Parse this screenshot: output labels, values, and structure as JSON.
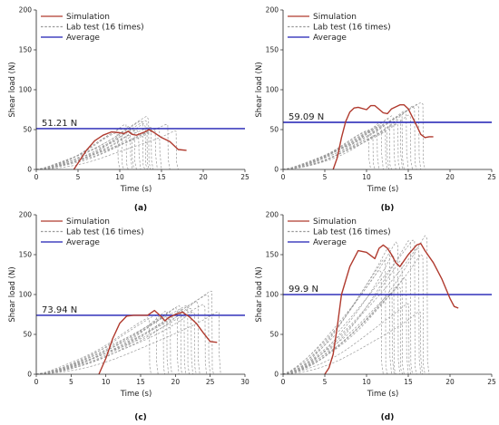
{
  "colors": {
    "simulation": "#b03a2e",
    "lab": "#9a9a9a",
    "average": "#1f1fb4",
    "axis": "#222222"
  },
  "chart_data": [
    {
      "type": "line",
      "panel_label": "(a)",
      "xlabel": "Time (s)",
      "ylabel": "Shear load (N)",
      "xlim": [
        0,
        25
      ],
      "ylim": [
        0,
        200
      ],
      "xticks": [
        0,
        5,
        10,
        15,
        20,
        25
      ],
      "yticks": [
        0,
        50,
        100,
        150,
        200
      ],
      "legend": {
        "placement": "top-left",
        "entries": [
          "Simulation",
          "Lab test (16 times)",
          "Average"
        ]
      },
      "average": {
        "value": 51.21,
        "label": "51.21 N"
      },
      "simulation": {
        "name": "Simulation",
        "x": [
          4.5,
          5,
          6,
          7,
          8,
          9,
          10,
          10.5,
          11,
          11.5,
          12,
          13,
          13.5,
          14,
          15,
          16,
          17,
          18
        ],
        "y": [
          0,
          8,
          24,
          36,
          43,
          47,
          46,
          45,
          48,
          44,
          43,
          47,
          50,
          47,
          40,
          35,
          25,
          24
        ]
      },
      "lab_tests": {
        "name": "Lab test (16 times)",
        "peaks": [
          [
            9.5,
            45
          ],
          [
            10,
            52
          ],
          [
            10.5,
            58
          ],
          [
            11,
            55
          ],
          [
            11.5,
            50
          ],
          [
            12,
            48
          ],
          [
            12.5,
            60
          ],
          [
            13,
            62
          ],
          [
            13.5,
            55
          ],
          [
            14,
            50
          ],
          [
            11.2,
            40
          ],
          [
            12.8,
            56
          ],
          [
            13.2,
            65
          ],
          [
            14.5,
            52
          ],
          [
            15.5,
            58
          ],
          [
            16.5,
            50
          ]
        ],
        "drops": [
          12,
          5,
          8,
          15,
          10,
          20,
          6,
          9,
          11,
          18,
          14,
          7,
          10,
          22,
          13,
          9
        ]
      }
    },
    {
      "type": "line",
      "panel_label": "(b)",
      "xlabel": "Time (s)",
      "ylabel": "Shear load (N)",
      "xlim": [
        0,
        25
      ],
      "ylim": [
        0,
        200
      ],
      "xticks": [
        0,
        5,
        10,
        15,
        20,
        25
      ],
      "yticks": [
        0,
        50,
        100,
        150,
        200
      ],
      "legend": {
        "placement": "top-left",
        "entries": [
          "Simulation",
          "Lab test (16 times)",
          "Average"
        ]
      },
      "average": {
        "value": 59.09,
        "label": "59.09 N"
      },
      "simulation": {
        "name": "Simulation",
        "x": [
          6,
          6.5,
          7,
          7.5,
          8,
          8.5,
          9,
          10,
          10.5,
          11,
          12,
          12.5,
          13,
          14,
          14.5,
          15,
          16,
          16.5,
          17,
          17.5,
          18
        ],
        "y": [
          0,
          15,
          40,
          60,
          72,
          77,
          78,
          75,
          80,
          80,
          71,
          70,
          76,
          81,
          81,
          76,
          55,
          44,
          40,
          41,
          41
        ]
      },
      "lab_tests": {
        "name": "Lab test (16 times)",
        "peaks": [
          [
            10,
            48
          ],
          [
            10.5,
            52
          ],
          [
            11,
            56
          ],
          [
            11.5,
            60
          ],
          [
            12,
            55
          ],
          [
            12.5,
            62
          ],
          [
            13,
            66
          ],
          [
            13.5,
            58
          ],
          [
            14,
            70
          ],
          [
            14.5,
            75
          ],
          [
            15,
            68
          ],
          [
            15.5,
            78
          ],
          [
            16,
            80
          ],
          [
            16.5,
            84
          ],
          [
            12.2,
            50
          ],
          [
            13.8,
            64
          ]
        ],
        "drops": [
          12,
          8,
          15,
          20,
          10,
          6,
          18,
          9,
          14,
          22,
          11,
          7,
          16,
          10,
          13,
          19
        ]
      }
    },
    {
      "type": "line",
      "panel_label": "(c)",
      "xlabel": "Time (s)",
      "ylabel": "Shear load (N)",
      "xlim": [
        0,
        30
      ],
      "ylim": [
        0,
        200
      ],
      "xticks": [
        0,
        5,
        10,
        15,
        20,
        25,
        30
      ],
      "yticks": [
        0,
        50,
        100,
        150,
        200
      ],
      "legend": {
        "placement": "top-left",
        "entries": [
          "Simulation",
          "Lab test (16 times)",
          "Average"
        ]
      },
      "average": {
        "value": 73.94,
        "label": "73.94 N"
      },
      "simulation": {
        "name": "Simulation",
        "x": [
          9,
          10,
          11,
          12,
          13,
          14,
          15,
          16,
          17,
          18,
          18.5,
          19,
          20,
          21,
          22,
          23,
          24,
          25,
          26
        ],
        "y": [
          0,
          20,
          45,
          64,
          73,
          74,
          74,
          74,
          80,
          72,
          67,
          71,
          75,
          78,
          72,
          64,
          52,
          41,
          40
        ]
      },
      "lab_tests": {
        "name": "Lab test (16 times)",
        "peaks": [
          [
            16,
            70
          ],
          [
            17,
            75
          ],
          [
            18,
            72
          ],
          [
            18.5,
            80
          ],
          [
            19,
            78
          ],
          [
            20,
            82
          ],
          [
            20.5,
            85
          ],
          [
            21,
            80
          ],
          [
            21.5,
            88
          ],
          [
            22,
            84
          ],
          [
            22.5,
            78
          ],
          [
            23,
            90
          ],
          [
            24,
            86
          ],
          [
            24.5,
            100
          ],
          [
            25,
            106
          ],
          [
            26,
            80
          ]
        ],
        "drops": [
          10,
          15,
          8,
          20,
          12,
          18,
          6,
          14,
          11,
          22,
          9,
          16,
          13,
          19,
          7,
          25
        ]
      }
    },
    {
      "type": "line",
      "panel_label": "(d)",
      "xlabel": "Time (s)",
      "ylabel": "Shear load (N)",
      "xlim": [
        0,
        25
      ],
      "ylim": [
        0,
        200
      ],
      "xticks": [
        0,
        5,
        10,
        15,
        20,
        25
      ],
      "yticks": [
        0,
        50,
        100,
        150,
        200
      ],
      "legend": {
        "placement": "top-left",
        "entries": [
          "Simulation",
          "Lab test (16 times)",
          "Average"
        ]
      },
      "average": {
        "value": 99.9,
        "label": "99.9 N"
      },
      "simulation": {
        "name": "Simulation",
        "x": [
          5,
          5.5,
          6,
          6.5,
          7,
          8,
          9,
          10,
          11,
          11.5,
          12,
          12.5,
          13,
          13.5,
          14,
          15,
          16,
          16.5,
          17,
          18,
          19,
          20,
          20.5,
          21
        ],
        "y": [
          0,
          8,
          25,
          60,
          100,
          135,
          155,
          153,
          145,
          158,
          162,
          158,
          150,
          140,
          135,
          150,
          162,
          164,
          155,
          140,
          120,
          95,
          85,
          83
        ]
      },
      "lab_tests": {
        "name": "Lab test (16 times)",
        "peaks": [
          [
            11.5,
            130
          ],
          [
            12,
            145
          ],
          [
            12.5,
            160
          ],
          [
            13,
            150
          ],
          [
            13.5,
            165
          ],
          [
            14,
            140
          ],
          [
            14.5,
            120
          ],
          [
            15,
            168
          ],
          [
            15.5,
            170
          ],
          [
            16,
            160
          ],
          [
            16.5,
            150
          ],
          [
            17,
            172
          ],
          [
            12.8,
            100
          ],
          [
            13.8,
            110
          ],
          [
            14.8,
            90
          ],
          [
            16.2,
            80
          ]
        ],
        "drops": [
          15,
          10,
          22,
          8,
          18,
          12,
          25,
          14,
          9,
          20,
          11,
          16,
          19,
          7,
          13,
          21
        ]
      }
    }
  ]
}
